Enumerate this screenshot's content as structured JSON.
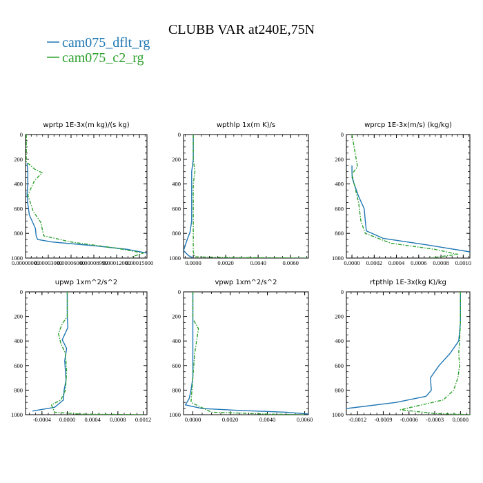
{
  "figure": {
    "title": "CLUBB VAR at240E,75N",
    "legend": [
      {
        "label": "cam075_dflt_rg",
        "color": "#1f77b4"
      },
      {
        "label": "cam075_c2_rg",
        "color": "#2ca02c"
      }
    ]
  },
  "chart_data": [
    {
      "type": "line",
      "title": "wprtp  1E-3x(m kg)/(s kg)",
      "xlabel": "",
      "ylabel": "",
      "xlim": [
        0,
        0.00016
      ],
      "ylim": [
        1000,
        0
      ],
      "xticks_labels": [
        "0.00000000",
        "0.00003000",
        "0.00006000",
        "0.00008999",
        "0.00012000",
        "0.00015000"
      ],
      "xticks_values": [
        0,
        3e-05,
        6e-05,
        9e-05,
        0.00012,
        0.00015
      ],
      "yticks": [
        0,
        200,
        400,
        600,
        800,
        1000
      ],
      "series": [
        {
          "name": "cam075_dflt_rg",
          "color": "#1f77b4",
          "dashed": false,
          "x": [
            2e-06,
            3e-06,
            3e-06,
            2e-06,
            3e-06,
            5e-06,
            1.3e-05,
            1.4e-05,
            1.6e-05,
            3.5e-05,
            9e-05,
            0.000135,
            0.00016
          ],
          "y": [
            230,
            300,
            400,
            480,
            560,
            650,
            760,
            820,
            850,
            870,
            900,
            930,
            960
          ]
        },
        {
          "name": "cam075_c2_rg",
          "color": "#2ca02c",
          "dashed": true,
          "x": [
            1e-06,
            1e-06,
            1.2e-05,
            2.2e-05,
            1.2e-05,
            3e-06,
            1e-05,
            2e-05,
            2.4e-05,
            6e-05,
            0.00012,
            0.000155,
            0.00014
          ],
          "y": [
            0,
            220,
            280,
            310,
            370,
            490,
            620,
            710,
            820,
            870,
            920,
            960,
            990
          ]
        }
      ]
    },
    {
      "type": "line",
      "title": "wpthlp  1x(m K)/s",
      "xlabel": "",
      "ylabel": "",
      "xlim": [
        -0.0006,
        0.0071
      ],
      "ylim": [
        1000,
        0
      ],
      "xticks_labels": [
        "0.0000",
        "0.0020",
        "0.0040",
        "0.0060"
      ],
      "xticks_values": [
        0,
        0.002,
        0.004,
        0.006
      ],
      "yticks": [
        0,
        200,
        400,
        600,
        800,
        1000
      ],
      "series": [
        {
          "name": "cam075_dflt_rg",
          "color": "#1f77b4",
          "dashed": false,
          "x": [
            0.0,
            0.0,
            0.0,
            -0.0001,
            -0.0001,
            -0.0001,
            -0.0002,
            -0.0004,
            -0.0006,
            -0.0003,
            0.0
          ],
          "y": [
            0,
            100,
            200,
            300,
            500,
            700,
            790,
            860,
            940,
            980,
            1000
          ]
        },
        {
          "name": "cam075_c2_rg",
          "color": "#2ca02c",
          "dashed": true,
          "x": [
            0.0,
            0.0,
            0.0001,
            0.0,
            0.0,
            0.0,
            0.0,
            0.0001,
            0.002,
            0.007
          ],
          "y": [
            0,
            200,
            300,
            400,
            600,
            800,
            950,
            990,
            995,
            1000
          ]
        }
      ]
    },
    {
      "type": "line",
      "title": "wprcp  1E-3x(m/s) (kg/kg)",
      "xlabel": "",
      "ylabel": "",
      "xlim": [
        -5e-05,
        0.00106
      ],
      "ylim": [
        1000,
        0
      ],
      "xticks_labels": [
        "0.0000",
        "0.0002",
        "0.0004",
        "0.0006",
        "0.0008",
        "0.0010"
      ],
      "xticks_values": [
        0,
        0.0002,
        0.0004,
        0.0006,
        0.0008,
        0.001
      ],
      "yticks": [
        0,
        200,
        400,
        600,
        800,
        1000
      ],
      "series": [
        {
          "name": "cam075_dflt_rg",
          "color": "#1f77b4",
          "dashed": false,
          "x": [
            0.0,
            0.0,
            2e-06,
            2e-05,
            6e-05,
            0.00011,
            0.00012,
            0.00013,
            0.00028,
            0.00065,
            0.00106
          ],
          "y": [
            250,
            300,
            350,
            400,
            500,
            600,
            700,
            780,
            840,
            890,
            950
          ]
        },
        {
          "name": "cam075_c2_rg",
          "color": "#2ca02c",
          "dashed": true,
          "x": [
            0.0,
            5e-05,
            0.0,
            2e-05,
            6e-05,
            8e-05,
            0.0001,
            0.00012,
            0.00035,
            0.00075,
            0.00095,
            0.0007
          ],
          "y": [
            0,
            260,
            320,
            400,
            550,
            700,
            750,
            800,
            880,
            930,
            970,
            1000
          ]
        }
      ]
    },
    {
      "type": "line",
      "title": "upwp  1xm^2/s^2",
      "xlabel": "",
      "ylabel": "",
      "xlim": [
        -0.00066,
        0.00126
      ],
      "ylim": [
        1000,
        0
      ],
      "xticks_labels": [
        "-0.0004",
        "0.0000",
        "0.0004",
        "0.0008",
        "0.0012"
      ],
      "xticks_values": [
        -0.0004,
        0,
        0.0004,
        0.0008,
        0.0012
      ],
      "yticks": [
        0,
        200,
        400,
        600,
        800,
        1000
      ],
      "series": [
        {
          "name": "cam075_dflt_rg",
          "color": "#1f77b4",
          "dashed": false,
          "x": [
            0.0,
            0.0,
            1e-05,
            -8e-05,
            -1e-05,
            -4e-05,
            -2e-05,
            -5e-05,
            -6e-05,
            -0.0002,
            -0.00055
          ],
          "y": [
            0,
            200,
            290,
            390,
            460,
            560,
            720,
            800,
            880,
            940,
            970
          ]
        },
        {
          "name": "cam075_c2_rg",
          "color": "#2ca02c",
          "dashed": true,
          "x": [
            0.0,
            0.0,
            -8e-05,
            -0.00014,
            -0.0001,
            -3e-05,
            -1e-05,
            -3e-05,
            -0.0001,
            -0.00025,
            -0.0002,
            0.0002,
            0.0012
          ],
          "y": [
            0,
            200,
            260,
            340,
            420,
            500,
            650,
            800,
            880,
            920,
            980,
            995,
            1000
          ]
        }
      ]
    },
    {
      "type": "line",
      "title": "vpwp  1xm^2/s^2",
      "xlabel": "",
      "ylabel": "",
      "xlim": [
        -0.0005,
        0.0062
      ],
      "ylim": [
        1000,
        0
      ],
      "xticks_labels": [
        "0.0000",
        "0.0020",
        "0.0040",
        "0.0060"
      ],
      "xticks_values": [
        0,
        0.002,
        0.004,
        0.006
      ],
      "yticks": [
        0,
        200,
        400,
        600,
        800,
        1000
      ],
      "series": [
        {
          "name": "cam075_dflt_rg",
          "color": "#1f77b4",
          "dashed": false,
          "x": [
            0.0,
            0.0,
            0.0,
            -0.0001,
            -0.0002,
            -0.0004,
            0.0005,
            0.0025,
            0.005,
            0.0062
          ],
          "y": [
            0,
            400,
            700,
            800,
            870,
            920,
            950,
            965,
            980,
            995
          ]
        },
        {
          "name": "cam075_c2_rg",
          "color": "#2ca02c",
          "dashed": true,
          "x": [
            0.0,
            0.0,
            0.0003,
            0.0002,
            0.0001,
            0.0,
            -0.0001,
            0.001,
            0.004,
            0.006
          ],
          "y": [
            0,
            220,
            300,
            400,
            500,
            700,
            900,
            980,
            995,
            1000
          ]
        }
      ]
    },
    {
      "type": "line",
      "title": "rtpthlp  1E-3x(kg K)/kg",
      "xlabel": "",
      "ylabel": "",
      "xlim": [
        -0.00133,
        0.00011
      ],
      "ylim": [
        1000,
        0
      ],
      "xticks_labels": [
        "-0.0012",
        "-0.0009",
        "-0.0006",
        "-0.0003",
        "0.0000"
      ],
      "xticks_values": [
        -0.0012,
        -0.0009,
        -0.0006,
        -0.0003,
        0
      ],
      "yticks": [
        0,
        200,
        400,
        600,
        800,
        1000
      ],
      "series": [
        {
          "name": "cam075_dflt_rg",
          "color": "#1f77b4",
          "dashed": false,
          "x": [
            0.0,
            0.0,
            0.0,
            -2e-05,
            -0.00012,
            -0.00025,
            -0.00035,
            -0.00034,
            -0.0004,
            -0.00075,
            -0.00133
          ],
          "y": [
            0,
            200,
            250,
            400,
            500,
            600,
            700,
            800,
            850,
            900,
            950
          ]
        },
        {
          "name": "cam075_c2_rg",
          "color": "#2ca02c",
          "dashed": true,
          "x": [
            0.0,
            0.0,
            -1e-05,
            -2e-05,
            -1e-05,
            -3e-05,
            -8e-05,
            -0.0002,
            -0.0007,
            -0.0003,
            0.00011
          ],
          "y": [
            0,
            250,
            400,
            500,
            600,
            700,
            800,
            880,
            960,
            990,
            1000
          ]
        }
      ]
    }
  ]
}
